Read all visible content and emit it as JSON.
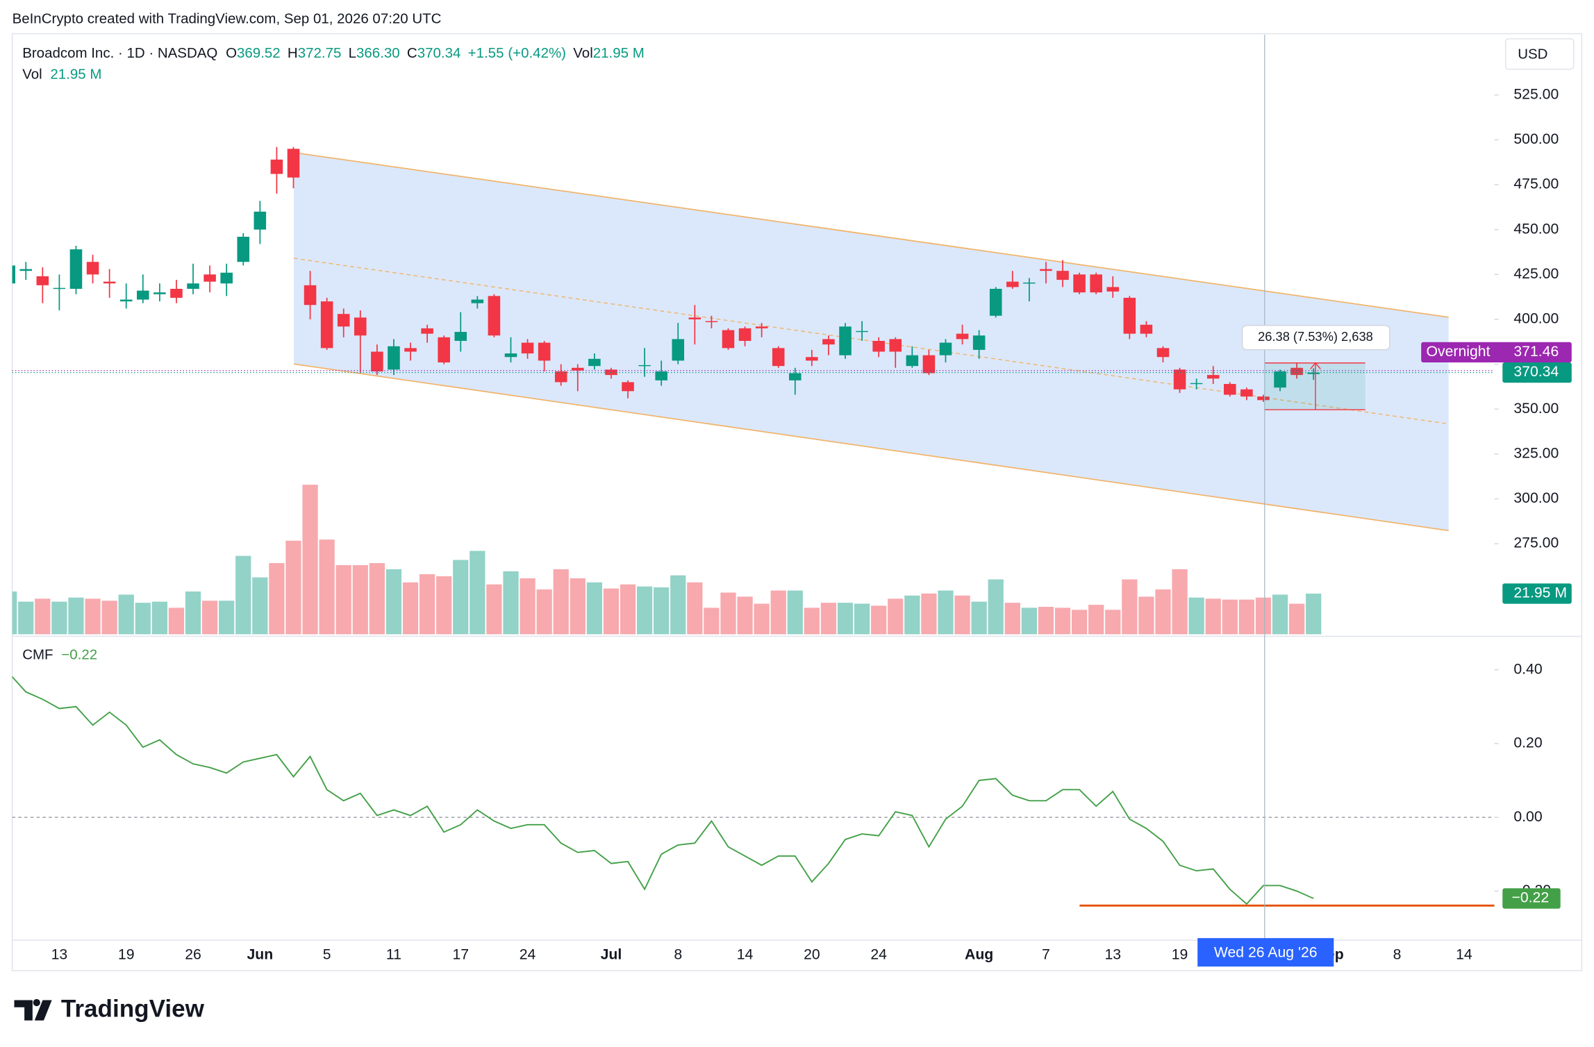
{
  "header": {
    "text": "BeInCrypto created with TradingView.com, Sep 01, 2026 07:20 UTC"
  },
  "brand": "TradingView",
  "chart_data": {
    "type": "candlestick",
    "symbol": "Broadcom Inc. · 1D · NASDAQ",
    "currency": "USD",
    "legend": [
      {
        "key": "O",
        "value": "369.52"
      },
      {
        "key": "H",
        "value": "372.75"
      },
      {
        "key": "L",
        "value": "366.30"
      },
      {
        "key": "C",
        "value": "370.34"
      }
    ],
    "change": {
      "value": 1.55,
      "label": "+1.55"
    },
    "change_pct": {
      "value": 0.42,
      "label": "(+0.42%)"
    },
    "categories": [
      null,
      null,
      null,
      "13",
      null,
      null,
      null,
      "19",
      null,
      null,
      null,
      "26",
      null,
      null,
      null,
      "Jun",
      null,
      null,
      null,
      "5",
      null,
      null,
      null,
      "11",
      null,
      null,
      null,
      "17",
      null,
      null,
      null,
      "24",
      null,
      null,
      null,
      null,
      "Jul",
      null,
      null,
      null,
      "8",
      null,
      null,
      null,
      "14",
      null,
      null,
      null,
      "20",
      null,
      null,
      null,
      "24",
      null,
      null,
      null,
      null,
      null,
      "Aug",
      null,
      null,
      null,
      "7",
      null,
      null,
      null,
      "13",
      null,
      null,
      null,
      "19",
      null,
      null,
      null,
      null,
      null,
      null,
      null,
      null,
      "Sep",
      null,
      null,
      null,
      "8",
      null,
      null,
      null,
      "14",
      null
    ],
    "open": [
      420,
      427,
      424,
      417,
      417,
      432,
      421,
      410,
      411,
      414,
      417,
      417,
      425,
      420,
      432,
      450,
      489,
      495,
      419,
      410,
      403,
      401,
      382,
      372,
      384,
      395,
      390,
      388,
      409,
      413,
      379,
      387,
      387,
      371,
      373,
      374,
      372,
      365,
      374,
      366,
      377,
      401,
      399,
      394,
      395,
      396,
      384,
      366,
      379,
      389,
      380,
      393,
      388,
      389,
      374,
      380,
      380,
      392,
      383,
      402,
      421,
      420,
      428,
      427,
      425,
      425,
      418,
      412,
      397,
      384,
      372,
      364,
      369,
      364,
      361,
      357,
      362,
      373,
      369.52,
      null,
      null,
      null,
      null,
      null,
      null,
      null,
      null,
      null,
      null
    ],
    "high": [
      432,
      432,
      429,
      425,
      441,
      436,
      428,
      420,
      425,
      420,
      422,
      431,
      430,
      431,
      448,
      466,
      496,
      496,
      427,
      412,
      406,
      405,
      386,
      389,
      387,
      397,
      391,
      404,
      413,
      414,
      390,
      389,
      388,
      375,
      375,
      381,
      373,
      366,
      384,
      377,
      398,
      408,
      402,
      395,
      396,
      398,
      385,
      373,
      383,
      391,
      398,
      399,
      390,
      390,
      385,
      383,
      389,
      397,
      394,
      418,
      427,
      423,
      432,
      433,
      426,
      426,
      424,
      413,
      399,
      385,
      373,
      367,
      374,
      365,
      362,
      358,
      372,
      376,
      372.75,
      null,
      null,
      null,
      null,
      null,
      null,
      null,
      null,
      null,
      null
    ],
    "low": [
      418,
      422,
      409,
      405,
      414,
      420,
      412,
      406,
      409,
      410,
      409,
      414,
      415,
      413,
      430,
      442,
      470,
      473,
      400,
      383,
      390,
      370,
      369,
      369,
      377,
      387,
      375,
      382,
      406,
      390,
      376,
      378,
      371,
      363,
      360,
      372,
      367,
      356,
      368,
      363,
      375,
      386,
      395,
      383,
      385,
      390,
      373,
      358,
      374,
      380,
      378,
      388,
      379,
      373,
      373,
      369,
      376,
      386,
      378,
      401,
      417,
      410,
      420,
      418,
      414,
      414,
      412,
      389,
      390,
      376,
      359,
      361,
      364,
      357,
      355,
      354,
      360,
      367,
      366.3,
      null,
      null,
      null,
      null,
      null,
      null,
      null,
      null,
      null,
      null
    ],
    "close": [
      430,
      428,
      419,
      417.5,
      439,
      425,
      420,
      411,
      416,
      415,
      412,
      420,
      421,
      426,
      446,
      460,
      481,
      479,
      408,
      384,
      396,
      391,
      371,
      385,
      382,
      392,
      376,
      393,
      411,
      391,
      381,
      381,
      377,
      365,
      371.5,
      378,
      369,
      360,
      374.5,
      371,
      389,
      400,
      398.5,
      384,
      388,
      395,
      374,
      370,
      377,
      386,
      396,
      393.5,
      382,
      382,
      380,
      370,
      387,
      389,
      391,
      417,
      418,
      420.5,
      427,
      422,
      415,
      415,
      415.5,
      392,
      392,
      379,
      361,
      364.5,
      367,
      358,
      357,
      355,
      371,
      369,
      370.34,
      null,
      null,
      null,
      null,
      null,
      null,
      null,
      null,
      null,
      null
    ],
    "up_color": "#089981",
    "down_color": "#f23645",
    "ylim": [
      224,
      558
    ],
    "yticks": [
      {
        "value": 275,
        "label": "275.00"
      },
      {
        "value": 300,
        "label": "300.00"
      },
      {
        "value": 325,
        "label": "325.00"
      },
      {
        "value": 350,
        "label": "350.00"
      },
      {
        "value": 375,
        "label": "375.00"
      },
      {
        "value": 400,
        "label": "400.00"
      },
      {
        "value": 425,
        "label": "425.00"
      },
      {
        "value": 450,
        "label": "450.00"
      },
      {
        "value": 475,
        "label": "475.00"
      },
      {
        "value": 500,
        "label": "500.00"
      },
      {
        "value": 525,
        "label": "525.00"
      }
    ],
    "grid": false,
    "last_price": 370.34,
    "overnight": {
      "name": "Overnight",
      "value": 371.46
    },
    "volume": {
      "name": "Vol",
      "value_label": "21.95 M",
      "ylim": [
        0,
        323
      ],
      "up_color": "#92d2c7",
      "down_color": "#f7a9ae",
      "values": [
        23.1,
        17.6,
        19.2,
        17.6,
        19.8,
        19.2,
        18.1,
        21.4,
        17.0,
        17.6,
        14.3,
        23.1,
        18.1,
        18.1,
        42.3,
        30.7,
        38.4,
        50.5,
        80.7,
        51.1,
        37.3,
        37.3,
        38.4,
        35.1,
        28.0,
        32.4,
        31.3,
        40.1,
        45.0,
        26.9,
        34.0,
        30.2,
        24.2,
        35.1,
        30.2,
        28.0,
        24.7,
        26.9,
        25.8,
        25.3,
        31.8,
        28.0,
        14.3,
        22.5,
        20.3,
        16.5,
        23.6,
        23.6,
        14.3,
        17.0,
        17.0,
        16.5,
        15.4,
        19.2,
        20.9,
        22.0,
        23.6,
        20.9,
        17.6,
        29.6,
        17.0,
        14.3,
        14.8,
        14.3,
        13.2,
        15.9,
        13.2,
        29.6,
        20.3,
        24.2,
        35.1,
        19.8,
        19.2,
        18.7,
        18.7,
        19.8,
        21.4,
        16.5,
        21.95,
        null,
        null,
        null,
        null,
        null,
        null,
        null,
        null,
        null,
        null
      ]
    },
    "cmf": {
      "name": "CMF",
      "value_label": "−0.22",
      "color": "#43a047",
      "ylim": [
        -0.333,
        0.488
      ],
      "yticks": [
        {
          "value": -0.2,
          "label": "−0.20"
        },
        {
          "value": 0,
          "label": "0.00"
        },
        {
          "value": 0.2,
          "label": "0.20"
        },
        {
          "value": 0.4,
          "label": "0.40"
        }
      ],
      "values": [
        0.39,
        0.34,
        0.32,
        0.295,
        0.3,
        0.25,
        0.285,
        0.25,
        0.19,
        0.21,
        0.17,
        0.145,
        0.135,
        0.12,
        0.15,
        0.16,
        0.17,
        0.11,
        0.165,
        0.075,
        0.045,
        0.065,
        0.005,
        0.02,
        0.005,
        0.03,
        -0.04,
        -0.02,
        0.02,
        -0.01,
        -0.03,
        -0.02,
        -0.02,
        -0.07,
        -0.095,
        -0.09,
        -0.125,
        -0.12,
        -0.195,
        -0.1,
        -0.075,
        -0.07,
        -0.01,
        -0.08,
        -0.105,
        -0.13,
        -0.105,
        -0.105,
        -0.175,
        -0.125,
        -0.06,
        -0.045,
        -0.05,
        0.015,
        0.005,
        -0.08,
        -0.005,
        0.03,
        0.1,
        0.105,
        0.06,
        0.045,
        0.045,
        0.075,
        0.075,
        0.03,
        0.07,
        -0.005,
        -0.03,
        -0.065,
        -0.13,
        -0.145,
        -0.14,
        -0.195,
        -0.235,
        -0.185,
        -0.185,
        -0.2,
        -0.22,
        null,
        null,
        null,
        null,
        null,
        null,
        null,
        null,
        null,
        null
      ]
    },
    "measure_label": "26.38 (7.53%) 2,638",
    "crosshair_label": "Wed 26 Aug '26"
  }
}
